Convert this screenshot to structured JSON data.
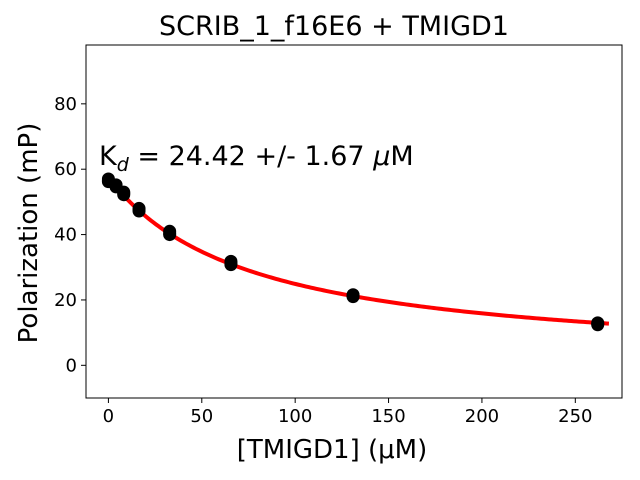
{
  "chart_data": {
    "type": "scatter",
    "title": "SCRIB_1_f16E6 + TMIGD1",
    "xlabel": "[TMIGD1] (μM)",
    "ylabel": "Polarization (mP)",
    "xlim": [
      -12,
      275
    ],
    "ylim": [
      -10,
      98
    ],
    "xticks": [
      0,
      50,
      100,
      150,
      200,
      250
    ],
    "yticks": [
      0,
      20,
      40,
      60,
      80
    ],
    "grid": false,
    "annotation": {
      "prefix": "K",
      "subscript": "d",
      "value_text": " = 24.42 +/- 1.67 ",
      "unit_mu": "μ",
      "unit_rest": "M",
      "anchor": [
        -6,
        62
      ]
    },
    "series": [
      {
        "kind": "points",
        "color": "#000000",
        "x": [
          0,
          0,
          0,
          4.1,
          4.1,
          4.1,
          8.2,
          8.2,
          8.2,
          16.4,
          16.4,
          16.4,
          32.8,
          32.8,
          32.8,
          65.6,
          65.6,
          65.6,
          131,
          131,
          131,
          262,
          262,
          262
        ],
        "y": [
          57.0,
          56.2,
          56.6,
          55.2,
          54.6,
          54.9,
          53.0,
          52.2,
          52.6,
          48.0,
          47.2,
          47.6,
          41.0,
          40.0,
          40.5,
          31.8,
          30.8,
          31.3,
          21.6,
          21.0,
          21.3,
          13.0,
          12.4,
          12.7
        ]
      },
      {
        "kind": "fit",
        "color": "#ff0000",
        "model": {
          "top": 57.5,
          "bottom": 0,
          "kd": 24.42,
          "offset": 52.0
        },
        "x_range": [
          0,
          268
        ]
      }
    ]
  }
}
